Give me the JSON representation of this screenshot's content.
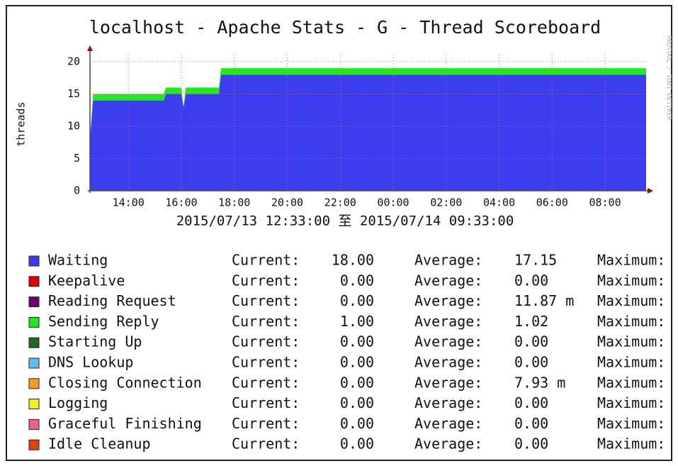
{
  "chart_data": {
    "type": "area",
    "stacked": true,
    "title": "localhost - Apache Stats - G - Thread Scoreboard",
    "y_label": "threads",
    "subtitle": "2015/07/13 12:33:00 至 2015/07/14 09:33:00",
    "watermark": "RRDTOOL / TOBI OETIKER",
    "grid": true,
    "x": [
      "2015-07-13 12:33",
      "2015-07-13 12:40",
      "2015-07-13 15:20",
      "2015-07-13 15:25",
      "2015-07-13 16:00",
      "2015-07-13 16:05",
      "2015-07-13 16:10",
      "2015-07-13 17:25",
      "2015-07-13 17:30",
      "2015-07-14 09:33"
    ],
    "xlim": [
      "2015-07-13 12:33",
      "2015-07-14 09:33"
    ],
    "xticks": [
      {
        "value": "2015-07-13 14:00",
        "label": "14:00"
      },
      {
        "value": "2015-07-13 16:00",
        "label": "16:00"
      },
      {
        "value": "2015-07-13 18:00",
        "label": "18:00"
      },
      {
        "value": "2015-07-13 20:00",
        "label": "20:00"
      },
      {
        "value": "2015-07-13 22:00",
        "label": "22:00"
      },
      {
        "value": "2015-07-14 00:00",
        "label": "00:00"
      },
      {
        "value": "2015-07-14 02:00",
        "label": "02:00"
      },
      {
        "value": "2015-07-14 04:00",
        "label": "04:00"
      },
      {
        "value": "2015-07-14 06:00",
        "label": "06:00"
      },
      {
        "value": "2015-07-14 08:00",
        "label": "08:00"
      }
    ],
    "ylim": [
      0,
      20
    ],
    "yticks": [
      0,
      5,
      10,
      15,
      20
    ],
    "legend_labels": {
      "current": "Current:",
      "average": "Average:",
      "maximum": "Maximum:"
    },
    "series": [
      {
        "name": "Waiting",
        "color": "#3d3df0",
        "values": [
          8,
          14,
          14,
          15,
          15,
          13,
          15,
          15,
          18,
          18
        ],
        "stats": {
          "current": "18.00",
          "average": "17.15"
        }
      },
      {
        "name": "Keepalive",
        "color": "#e00000",
        "values": [
          0,
          0,
          0,
          0,
          0,
          0,
          0,
          0,
          0,
          0
        ],
        "stats": {
          "current": "0.00",
          "average": "0.00"
        }
      },
      {
        "name": "Reading Request",
        "color": "#700070",
        "values": [
          0,
          0,
          0,
          0,
          0,
          0,
          0,
          0,
          0,
          0
        ],
        "stats": {
          "current": "0.00",
          "average": "11.87 m"
        }
      },
      {
        "name": "Sending Reply",
        "color": "#22e822",
        "values": [
          0,
          1,
          1,
          1,
          1,
          0,
          1,
          1,
          1,
          1
        ],
        "stats": {
          "current": "1.00",
          "average": "1.02"
        }
      },
      {
        "name": "Starting Up",
        "color": "#226622",
        "values": [
          0,
          0,
          0,
          0,
          0,
          0,
          0,
          0,
          0,
          0
        ],
        "stats": {
          "current": "0.00",
          "average": "0.00"
        }
      },
      {
        "name": "DNS Lookup",
        "color": "#66bbee",
        "values": [
          0,
          0,
          0,
          0,
          0,
          0,
          0,
          0,
          0,
          0
        ],
        "stats": {
          "current": "0.00",
          "average": "0.00"
        }
      },
      {
        "name": "Closing Connection",
        "color": "#f0a020",
        "values": [
          0,
          0,
          0,
          0,
          0,
          0,
          0,
          0,
          0,
          0
        ],
        "stats": {
          "current": "0.00",
          "average": "7.93 m"
        }
      },
      {
        "name": "Logging",
        "color": "#f0f020",
        "values": [
          0,
          0,
          0,
          0,
          0,
          0,
          0,
          0,
          0,
          0
        ],
        "stats": {
          "current": "0.00",
          "average": "0.00"
        }
      },
      {
        "name": "Graceful Finishing",
        "color": "#f06080",
        "values": [
          0,
          0,
          0,
          0,
          0,
          0,
          0,
          0,
          0,
          0
        ],
        "stats": {
          "current": "0.00",
          "average": "0.00"
        }
      },
      {
        "name": "Idle Cleanup",
        "color": "#e04010",
        "values": [
          0,
          0,
          0,
          0,
          0,
          0,
          0,
          0,
          0,
          0
        ],
        "stats": {
          "current": "0.00",
          "average": "0.00"
        }
      }
    ]
  }
}
